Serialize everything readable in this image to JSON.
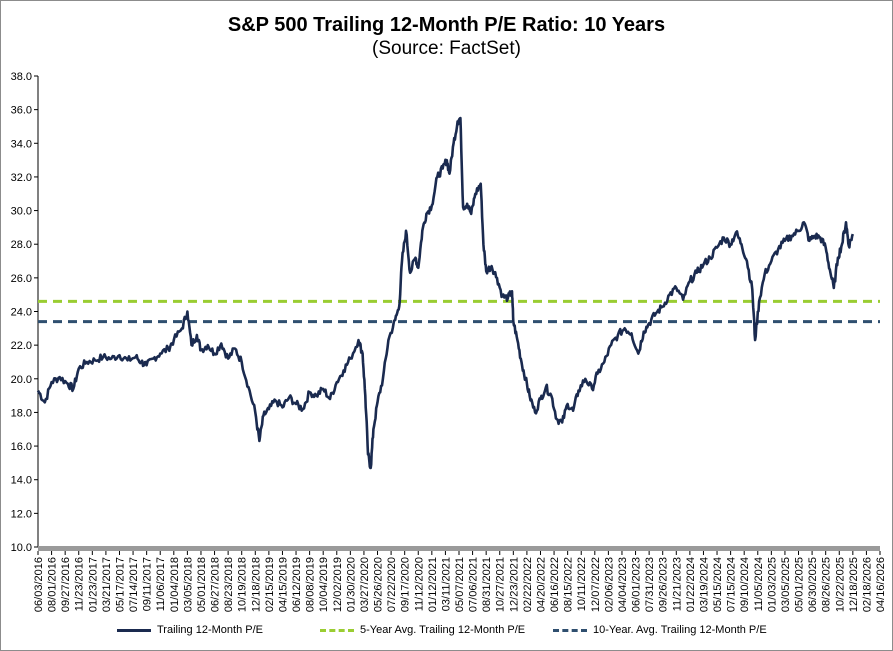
{
  "chart_data": {
    "type": "line",
    "title": "S&P 500 Trailing 12-Month P/E Ratio: 10 Years",
    "subtitle": "(Source: FactSet)",
    "ylim": [
      10.0,
      38.0
    ],
    "yticks": [
      "10.0",
      "12.0",
      "14.0",
      "16.0",
      "18.0",
      "20.0",
      "22.0",
      "24.0",
      "26.0",
      "28.0",
      "30.0",
      "32.0",
      "34.0",
      "36.0",
      "38.0"
    ],
    "xticks": [
      "06/03/2016",
      "08/01/2016",
      "09/27/2016",
      "11/23/2016",
      "01/23/2017",
      "03/21/2017",
      "05/17/2017",
      "07/14/2017",
      "09/11/2017",
      "11/06/2017",
      "01/04/2018",
      "03/05/2018",
      "05/01/2018",
      "06/27/2018",
      "08/23/2018",
      "10/19/2018",
      "12/18/2018",
      "02/15/2019",
      "04/15/2019",
      "06/12/2019",
      "08/08/2019",
      "10/04/2019",
      "12/02/2019",
      "01/30/2020",
      "03/27/2020",
      "05/26/2020",
      "07/22/2020",
      "09/17/2020",
      "11/12/2020",
      "01/12/2021",
      "03/11/2021",
      "05/07/2021",
      "07/06/2021",
      "08/31/2021",
      "10/27/2021",
      "12/23/2021",
      "02/22/2022",
      "04/20/2022",
      "06/16/2022",
      "08/15/2022",
      "10/11/2022",
      "12/07/2022",
      "02/06/2023",
      "04/04/2023",
      "06/01/2023",
      "07/31/2023",
      "09/26/2023",
      "11/21/2023",
      "01/22/2024",
      "03/19/2024",
      "05/15/2024",
      "07/15/2024",
      "09/10/2024",
      "11/05/2024",
      "01/03/2025",
      "03/05/2025",
      "05/01/2025",
      "06/30/2025",
      "08/26/2025",
      "10/22/2025",
      "12/18/2025",
      "02/18/2026",
      "04/16/2026"
    ],
    "series": [
      {
        "name": "Trailing 12-Month P/E",
        "color": "#1a2a4f",
        "points": [
          [
            0,
            19.3
          ],
          [
            0.5,
            18.6
          ],
          [
            1,
            19.8
          ],
          [
            1.6,
            20.1
          ],
          [
            2.2,
            19.7
          ],
          [
            2.6,
            19.4
          ],
          [
            3,
            20.6
          ],
          [
            3.6,
            21.0
          ],
          [
            4.2,
            21.1
          ],
          [
            4.8,
            21.3
          ],
          [
            5.4,
            21.2
          ],
          [
            6,
            21.4
          ],
          [
            6.6,
            21.1
          ],
          [
            7.2,
            21.3
          ],
          [
            7.6,
            21.0
          ],
          [
            8,
            20.8
          ],
          [
            8.5,
            21.2
          ],
          [
            9,
            21.5
          ],
          [
            9.6,
            21.8
          ],
          [
            10,
            22.3
          ],
          [
            10.6,
            23.0
          ],
          [
            11,
            24.0
          ],
          [
            11.3,
            22.0
          ],
          [
            11.7,
            22.6
          ],
          [
            12,
            21.7
          ],
          [
            12.5,
            22.0
          ],
          [
            13,
            21.5
          ],
          [
            13.5,
            22.1
          ],
          [
            14,
            21.2
          ],
          [
            14.5,
            21.8
          ],
          [
            15,
            21.0
          ],
          [
            15.5,
            19.5
          ],
          [
            16,
            18.0
          ],
          [
            16.3,
            16.3
          ],
          [
            16.6,
            17.8
          ],
          [
            17,
            18.2
          ],
          [
            17.5,
            18.7
          ],
          [
            18,
            18.3
          ],
          [
            18.5,
            18.9
          ],
          [
            19,
            18.5
          ],
          [
            19.5,
            18.2
          ],
          [
            20,
            19.2
          ],
          [
            20.5,
            19.0
          ],
          [
            21,
            19.4
          ],
          [
            21.5,
            18.8
          ],
          [
            22,
            19.8
          ],
          [
            22.5,
            20.5
          ],
          [
            23,
            21.2
          ],
          [
            23.6,
            22.3
          ],
          [
            23.9,
            21.5
          ],
          [
            24.1,
            19.0
          ],
          [
            24.3,
            15.5
          ],
          [
            24.5,
            14.7
          ],
          [
            24.7,
            17.0
          ],
          [
            25,
            18.6
          ],
          [
            25.4,
            20.0
          ],
          [
            25.8,
            22.3
          ],
          [
            26.3,
            23.5
          ],
          [
            26.6,
            24.3
          ],
          [
            26.8,
            27.0
          ],
          [
            27.1,
            28.8
          ],
          [
            27.4,
            26.3
          ],
          [
            27.8,
            27.2
          ],
          [
            28,
            26.6
          ],
          [
            28.3,
            28.8
          ],
          [
            28.6,
            29.8
          ],
          [
            29,
            30.3
          ],
          [
            29.4,
            32.0
          ],
          [
            29.8,
            32.5
          ],
          [
            30.1,
            33.0
          ],
          [
            30.3,
            32.2
          ],
          [
            30.6,
            34.0
          ],
          [
            30.9,
            35.3
          ],
          [
            31.1,
            35.5
          ],
          [
            31.3,
            30.2
          ],
          [
            31.6,
            30.4
          ],
          [
            31.9,
            29.8
          ],
          [
            32.2,
            31.0
          ],
          [
            32.6,
            31.6
          ],
          [
            32.8,
            28.0
          ],
          [
            33,
            26.4
          ],
          [
            33.4,
            26.7
          ],
          [
            33.8,
            26.0
          ],
          [
            34.2,
            24.9
          ],
          [
            34.6,
            24.8
          ],
          [
            34.9,
            25.2
          ],
          [
            35,
            23.4
          ],
          [
            35.3,
            22.3
          ],
          [
            35.6,
            21.0
          ],
          [
            35.9,
            20.0
          ],
          [
            36.2,
            19.0
          ],
          [
            36.6,
            18.0
          ],
          [
            37,
            18.8
          ],
          [
            37.4,
            19.5
          ],
          [
            37.8,
            19.0
          ],
          [
            38.2,
            17.6
          ],
          [
            38.6,
            17.4
          ],
          [
            39,
            18.5
          ],
          [
            39.4,
            18.1
          ],
          [
            39.8,
            19.3
          ],
          [
            40.3,
            20.0
          ],
          [
            40.8,
            19.4
          ],
          [
            41.2,
            20.3
          ],
          [
            41.7,
            21.0
          ],
          [
            42.2,
            22.0
          ],
          [
            42.7,
            22.6
          ],
          [
            43.2,
            23.0
          ],
          [
            43.7,
            22.7
          ],
          [
            44.2,
            21.5
          ],
          [
            44.6,
            22.8
          ],
          [
            45,
            23.3
          ],
          [
            45.5,
            23.9
          ],
          [
            46,
            24.3
          ],
          [
            46.5,
            25.0
          ],
          [
            47,
            25.4
          ],
          [
            47.5,
            24.7
          ],
          [
            48,
            25.8
          ],
          [
            48.5,
            26.3
          ],
          [
            49,
            26.8
          ],
          [
            49.5,
            27.2
          ],
          [
            50,
            27.8
          ],
          [
            50.5,
            28.4
          ],
          [
            51,
            28.0
          ],
          [
            51.4,
            28.7
          ],
          [
            51.8,
            28.0
          ],
          [
            52.2,
            27.0
          ],
          [
            52.6,
            25.3
          ],
          [
            52.8,
            22.3
          ],
          [
            53.1,
            24.6
          ],
          [
            53.5,
            26.2
          ],
          [
            54,
            27.0
          ],
          [
            54.5,
            27.7
          ],
          [
            55,
            28.2
          ],
          [
            55.5,
            28.5
          ],
          [
            56,
            28.8
          ],
          [
            56.4,
            29.3
          ],
          [
            56.8,
            28.2
          ],
          [
            57.2,
            28.5
          ],
          [
            57.6,
            28.4
          ],
          [
            58,
            27.8
          ],
          [
            58.3,
            26.5
          ],
          [
            58.6,
            25.4
          ],
          [
            58.9,
            27.2
          ],
          [
            59.2,
            28.0
          ],
          [
            59.5,
            29.3
          ],
          [
            59.7,
            27.9
          ],
          [
            60,
            28.6
          ]
        ]
      },
      {
        "name": "5-Year Avg. Trailing 12-Month P/E",
        "color": "#9acd32",
        "value": 24.6
      },
      {
        "name": "10-Year. Avg. Trailing 12-Month P/E",
        "color": "#2f4f6f",
        "value": 23.4
      }
    ]
  }
}
